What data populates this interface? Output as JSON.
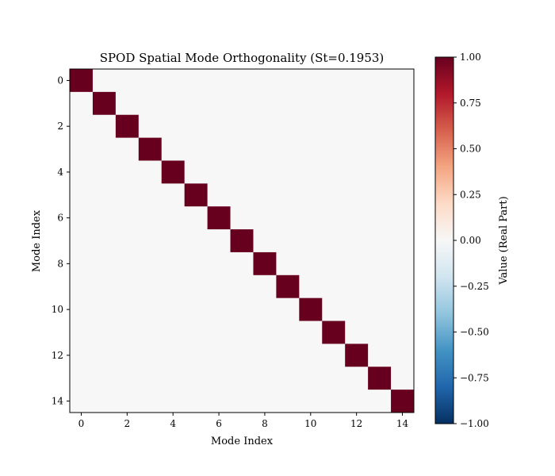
{
  "chart_data": {
    "type": "heatmap",
    "title": "SPOD Spatial Mode Orthogonality (St=0.1953)",
    "xlabel": "Mode Index",
    "ylabel": "Mode Index",
    "colorbar_label": "Value (Real Part)",
    "n_modes": 15,
    "x_ticks": [
      "0",
      "2",
      "4",
      "6",
      "8",
      "10",
      "12",
      "14"
    ],
    "y_ticks": [
      "0",
      "2",
      "4",
      "6",
      "8",
      "10",
      "12",
      "14"
    ],
    "x_tick_values": [
      0,
      2,
      4,
      6,
      8,
      10,
      12,
      14
    ],
    "y_tick_values": [
      0,
      2,
      4,
      6,
      8,
      10,
      12,
      14
    ],
    "colorbar_ticks": [
      "1.00",
      "0.75",
      "0.50",
      "0.25",
      "0.00",
      "−0.25",
      "−0.50",
      "−0.75",
      "−1.00"
    ],
    "colorbar_tick_values": [
      1.0,
      0.75,
      0.5,
      0.25,
      0.0,
      -0.25,
      -0.5,
      -0.75,
      -1.0
    ],
    "vmin": -1.0,
    "vmax": 1.0,
    "colormap": "RdBu_r",
    "diagonal_value": 1.0,
    "off_diagonal_value": 0.0,
    "colors": {
      "diagonal": "#67001f",
      "off_diagonal": "#f7f7f7",
      "colormap_stops": [
        "#053061",
        "#2166ac",
        "#4393c3",
        "#92c5de",
        "#d1e5f0",
        "#f7f7f7",
        "#fddbc7",
        "#f4a582",
        "#d6604d",
        "#b2182b",
        "#67001f"
      ]
    }
  }
}
